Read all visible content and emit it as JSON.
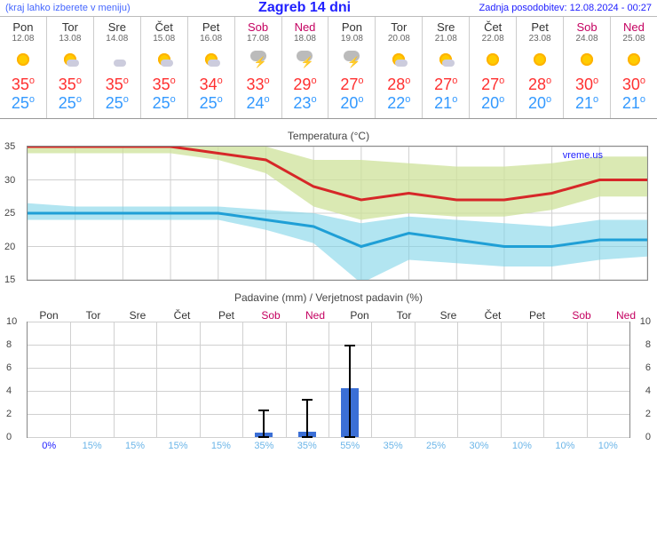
{
  "header": {
    "left": "(kraj lahko izberete v meniju)",
    "title": "Zagreb 14 dni",
    "right": "Zadnja posodobitev: 12.08.2024 - 00:27"
  },
  "days": [
    {
      "dow": "Pon",
      "date": "12.08",
      "weekend": false,
      "icon": "sun",
      "hi": 35,
      "lo": 25
    },
    {
      "dow": "Tor",
      "date": "13.08",
      "weekend": false,
      "icon": "sun cloud",
      "hi": 35,
      "lo": 25
    },
    {
      "dow": "Sre",
      "date": "14.08",
      "weekend": false,
      "icon": "cloud",
      "hi": 35,
      "lo": 25
    },
    {
      "dow": "Čet",
      "date": "15.08",
      "weekend": false,
      "icon": "sun cloud",
      "hi": 35,
      "lo": 25
    },
    {
      "dow": "Pet",
      "date": "16.08",
      "weekend": false,
      "icon": "sun cloud",
      "hi": 34,
      "lo": 25
    },
    {
      "dow": "Sob",
      "date": "17.08",
      "weekend": true,
      "icon": "storm",
      "hi": 33,
      "lo": 24
    },
    {
      "dow": "Ned",
      "date": "18.08",
      "weekend": true,
      "icon": "storm",
      "hi": 29,
      "lo": 23
    },
    {
      "dow": "Pon",
      "date": "19.08",
      "weekend": false,
      "icon": "storm",
      "hi": 27,
      "lo": 20
    },
    {
      "dow": "Tor",
      "date": "20.08",
      "weekend": false,
      "icon": "sun cloud",
      "hi": 28,
      "lo": 22
    },
    {
      "dow": "Sre",
      "date": "21.08",
      "weekend": false,
      "icon": "sun cloud",
      "hi": 27,
      "lo": 21
    },
    {
      "dow": "Čet",
      "date": "22.08",
      "weekend": false,
      "icon": "sun",
      "hi": 27,
      "lo": 20
    },
    {
      "dow": "Pet",
      "date": "23.08",
      "weekend": false,
      "icon": "sun",
      "hi": 28,
      "lo": 20
    },
    {
      "dow": "Sob",
      "date": "24.08",
      "weekend": true,
      "icon": "sun",
      "hi": 30,
      "lo": 21
    },
    {
      "dow": "Ned",
      "date": "25.08",
      "weekend": true,
      "icon": "sun",
      "hi": 30,
      "lo": 21
    }
  ],
  "tempChart": {
    "title": "Temperatura (°C)",
    "credits": "vreme.us",
    "ymin": 15,
    "ymax": 35,
    "ystep": 5,
    "hi": [
      35,
      35,
      35,
      35,
      34,
      33,
      29,
      27,
      28,
      27,
      27,
      28,
      30,
      30
    ],
    "lo": [
      25,
      25,
      25,
      25,
      25,
      24,
      23,
      20,
      22,
      21,
      20,
      20,
      21,
      21
    ],
    "hiBandTop": [
      37,
      36.5,
      36.5,
      36.5,
      36,
      35,
      33,
      33,
      32.5,
      32,
      32,
      32.5,
      33.5,
      33.5
    ],
    "hiBandBot": [
      34,
      34,
      34,
      34,
      33,
      31,
      26,
      24,
      25,
      24.5,
      24.5,
      25.5,
      27.5,
      27.5
    ],
    "loBandTop": [
      26.5,
      26,
      26,
      26,
      26,
      25.5,
      25,
      23.5,
      24.5,
      24,
      23.5,
      23,
      24,
      24
    ],
    "loBandBot": [
      24,
      24,
      24,
      24,
      24,
      22.5,
      20.5,
      14.5,
      18,
      17.5,
      17,
      17,
      18,
      18.5
    ],
    "hiColor": "#d62728",
    "loColor": "#1f9fd6",
    "hiBandFill": "#cde29a",
    "loBandFill": "#7fd3e8",
    "grid": "#d0d0d0",
    "border": "#888",
    "bg": "#ffffff"
  },
  "precipChart": {
    "title": "Padavine (mm) / Verjetnost padavin (%)",
    "ymin": 0,
    "ymax": 10,
    "ystep": 2,
    "bars": [
      0,
      0,
      0,
      0,
      0,
      0.4,
      0.5,
      4.2,
      0,
      0,
      0,
      0,
      0,
      0
    ],
    "err": [
      0,
      0,
      0,
      0,
      0,
      2.4,
      3.3,
      8,
      0,
      0,
      0,
      0,
      0,
      0
    ],
    "prob": [
      0,
      15,
      15,
      15,
      15,
      35,
      35,
      55,
      35,
      25,
      30,
      10,
      10,
      10
    ],
    "barColor": "#3b6fd6",
    "errColor": "#000000",
    "probColor": "#6bb5e8",
    "probColorZero": "#2020ff",
    "grid": "#d0d0d0",
    "border": "#888"
  }
}
